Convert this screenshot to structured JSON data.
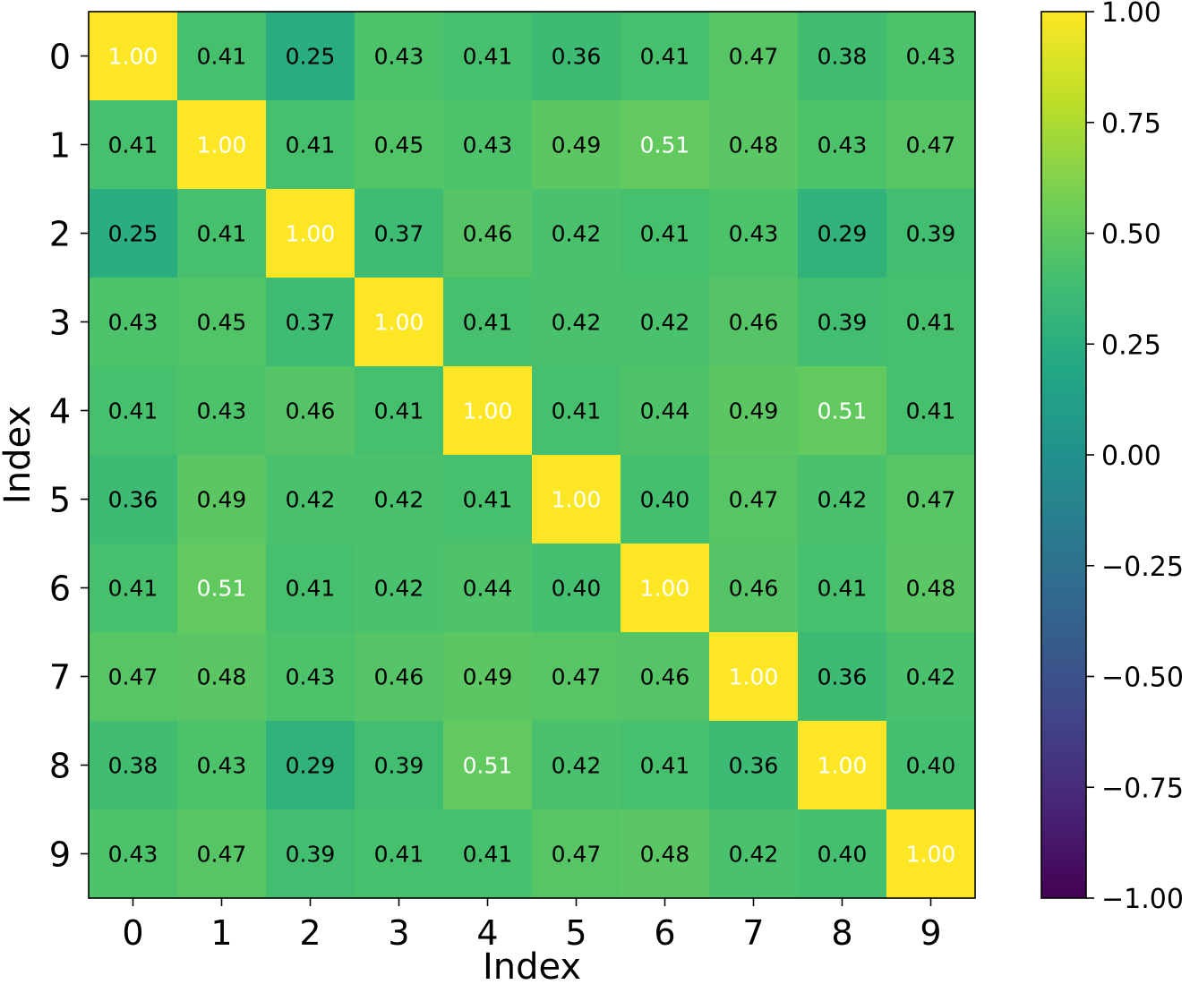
{
  "chart_data": {
    "type": "heatmap",
    "xlabel": "Index",
    "ylabel": "Index",
    "x_categories": [
      "0",
      "1",
      "2",
      "3",
      "4",
      "5",
      "6",
      "7",
      "8",
      "9"
    ],
    "y_categories": [
      "0",
      "1",
      "2",
      "3",
      "4",
      "5",
      "6",
      "7",
      "8",
      "9"
    ],
    "values": [
      [
        1.0,
        0.41,
        0.25,
        0.43,
        0.41,
        0.36,
        0.41,
        0.47,
        0.38,
        0.43
      ],
      [
        0.41,
        1.0,
        0.41,
        0.45,
        0.43,
        0.49,
        0.51,
        0.48,
        0.43,
        0.47
      ],
      [
        0.25,
        0.41,
        1.0,
        0.37,
        0.46,
        0.42,
        0.41,
        0.43,
        0.29,
        0.39
      ],
      [
        0.43,
        0.45,
        0.37,
        1.0,
        0.41,
        0.42,
        0.42,
        0.46,
        0.39,
        0.41
      ],
      [
        0.41,
        0.43,
        0.46,
        0.41,
        1.0,
        0.41,
        0.44,
        0.49,
        0.51,
        0.41
      ],
      [
        0.36,
        0.49,
        0.42,
        0.42,
        0.41,
        1.0,
        0.4,
        0.47,
        0.42,
        0.47
      ],
      [
        0.41,
        0.51,
        0.41,
        0.42,
        0.44,
        0.4,
        1.0,
        0.46,
        0.41,
        0.48
      ],
      [
        0.47,
        0.48,
        0.43,
        0.46,
        0.49,
        0.47,
        0.46,
        1.0,
        0.36,
        0.42
      ],
      [
        0.38,
        0.43,
        0.29,
        0.39,
        0.51,
        0.42,
        0.41,
        0.36,
        1.0,
        0.4
      ],
      [
        0.43,
        0.47,
        0.39,
        0.41,
        0.41,
        0.47,
        0.48,
        0.42,
        0.4,
        1.0
      ]
    ],
    "value_format_decimals": 2,
    "colormap": "viridis",
    "vmin": -1.0,
    "vmax": 1.0,
    "colorbar_ticks": [
      1.0,
      0.75,
      0.5,
      0.25,
      0.0,
      -0.25,
      -0.5,
      -0.75,
      -1.0
    ],
    "colorbar_tick_labels": [
      "1.00",
      "0.75",
      "0.50",
      "0.25",
      "0.00",
      "−0.25",
      "−0.50",
      "−0.75",
      "−1.00"
    ],
    "annotation_colors": {
      "dark": "#000000",
      "light": "#ffffff"
    },
    "grid": false,
    "legend": "colorbar-right"
  }
}
